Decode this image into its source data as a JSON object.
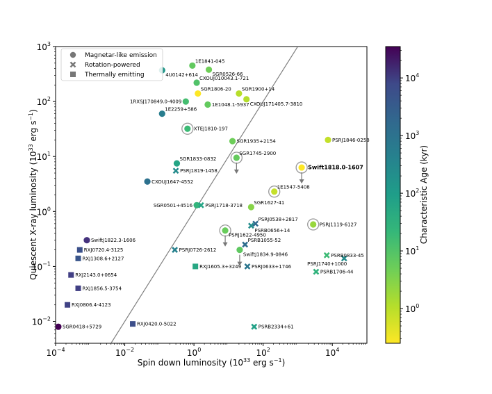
{
  "chart_data": {
    "type": "scatter",
    "xlabel": "Spin down luminosity (10",
    "xlabel_sup": "33",
    "xlabel_end": " erg s",
    "xlabel_sup2": "−1",
    "xlabel_close": ")",
    "ylabel": "Quiescent X-ray luminosity (10",
    "ylabel_sup": "33",
    "ylabel_end": " erg s",
    "ylabel_sup2": "−1",
    "ylabel_close": ")",
    "xscale": "log",
    "yscale": "log",
    "xlim": [
      0.0001,
      100000
    ],
    "ylim": [
      0.004,
      1000
    ],
    "x_ticks": [
      {
        "v": 0.0001,
        "base": "10",
        "exp": "−4"
      },
      {
        "v": 0.01,
        "base": "10",
        "exp": "−2"
      },
      {
        "v": 1,
        "base": "10",
        "exp": "0"
      },
      {
        "v": 100,
        "base": "10",
        "exp": "2"
      },
      {
        "v": 10000,
        "base": "10",
        "exp": "4"
      }
    ],
    "y_ticks": [
      {
        "v": 0.01,
        "base": "10",
        "exp": "−2"
      },
      {
        "v": 0.1,
        "base": "10",
        "exp": "−1"
      },
      {
        "v": 1,
        "base": "10",
        "exp": "0"
      },
      {
        "v": 10,
        "base": "10",
        "exp": "1"
      },
      {
        "v": 100,
        "base": "10",
        "exp": "2"
      },
      {
        "v": 1000,
        "base": "10",
        "exp": "3"
      }
    ],
    "legend": {
      "placement": "upper-left",
      "entries": [
        {
          "marker": "circle",
          "label": "Magnetar-like emission"
        },
        {
          "marker": "x",
          "label": "Rotation-powered"
        },
        {
          "marker": "square",
          "label": "Thermally emitting"
        }
      ]
    },
    "colorbar": {
      "label": "Characteristic Age (kyr)",
      "scale": "log",
      "range": [
        0.25,
        35000
      ],
      "colormap": "viridis_r",
      "ticks": [
        {
          "v": 1,
          "base": "10",
          "exp": "0"
        },
        {
          "v": 10,
          "base": "10",
          "exp": "1"
        },
        {
          "v": 100,
          "base": "10",
          "exp": "2"
        },
        {
          "v": 1000,
          "base": "10",
          "exp": "3"
        },
        {
          "v": 10000,
          "base": "10",
          "exp": "4"
        }
      ]
    },
    "reference_line": {
      "description": "Lx = Edot",
      "color": "#808080"
    },
    "points": [
      {
        "name": "1E1841-045",
        "x": 0.9,
        "y": 450,
        "marker": "circle",
        "age": 4.6,
        "label_pos": "ne"
      },
      {
        "name": "SGR0526-66",
        "x": 2.7,
        "y": 380,
        "marker": "circle",
        "age": 3.4,
        "label_pos": "se"
      },
      {
        "name": "4U0142+614",
        "x": 0.12,
        "y": 370,
        "marker": "circle",
        "age": 68,
        "label_pos": "se"
      },
      {
        "name": "CXOUJ010043.1-721",
        "x": 1.2,
        "y": 220,
        "marker": "circle",
        "age": 6.8,
        "label_pos": "ne"
      },
      {
        "name": "SGR1806-20",
        "x": 1.3,
        "y": 140,
        "marker": "circle",
        "age": 0.24,
        "label_pos": "ne"
      },
      {
        "name": "SGR1900+14",
        "x": 20,
        "y": 140,
        "marker": "circle",
        "age": 0.9,
        "label_pos": "ne"
      },
      {
        "name": "1RXSJ170849.0-4009",
        "x": 0.58,
        "y": 100,
        "marker": "circle",
        "age": 9,
        "label_pos": "w"
      },
      {
        "name": "1E1048.1-5937",
        "x": 2.5,
        "y": 88,
        "marker": "circle",
        "age": 4.5,
        "label_pos": "e"
      },
      {
        "name": "CXOUJ171405.7-3810",
        "x": 33,
        "y": 110,
        "marker": "circle",
        "age": 0.95,
        "label_pos": "se"
      },
      {
        "name": "1E2259+586",
        "x": 0.12,
        "y": 60,
        "marker": "circle",
        "age": 230,
        "label_pos": "ne"
      },
      {
        "name": "XTEJ1810-197",
        "x": 0.65,
        "y": 32,
        "marker": "circle",
        "age": 11,
        "label_pos": "e",
        "ring": true
      },
      {
        "name": "PSRJ1846-0258",
        "x": 7500,
        "y": 20,
        "marker": "circle",
        "age": 0.72,
        "label_pos": "e"
      },
      {
        "name": "SGR1935+2154",
        "x": 13,
        "y": 19,
        "marker": "circle",
        "age": 3.6,
        "label_pos": "e"
      },
      {
        "name": "SGR1745-2900",
        "x": 17,
        "y": 9.5,
        "marker": "circle",
        "age": 4.3,
        "label_pos": "ne",
        "ring": true,
        "arrow": true
      },
      {
        "name": "SGR1833-0832",
        "x": 0.32,
        "y": 7.5,
        "marker": "circle",
        "age": 34,
        "label_pos": "ne"
      },
      {
        "name": "Swift1818.0-1607",
        "x": 1300,
        "y": 6.3,
        "marker": "circle",
        "age": 0.25,
        "label_pos": "e",
        "ring": true,
        "arrow": true,
        "bold": true
      },
      {
        "name": "PSRJ1819-1458",
        "x": 0.3,
        "y": 5.5,
        "marker": "x",
        "age": 117,
        "label_pos": "e"
      },
      {
        "name": "CXOUJ1647-4552",
        "x": 0.045,
        "y": 3.5,
        "marker": "circle",
        "age": 420,
        "label_pos": "e"
      },
      {
        "name": "1E1547-5408",
        "x": 210,
        "y": 2.3,
        "marker": "circle",
        "age": 0.7,
        "label_pos": "ne",
        "ring": true
      },
      {
        "name": "SGR0501+4516",
        "x": 1.2,
        "y": 1.3,
        "marker": "circle",
        "age": 15,
        "label_pos": "w"
      },
      {
        "name": "PSRJ1718-3718",
        "x": 1.6,
        "y": 1.3,
        "marker": "x",
        "age": 34,
        "label_pos": "e"
      },
      {
        "name": "SGR1627-41",
        "x": 45,
        "y": 1.2,
        "marker": "circle",
        "age": 2.2,
        "label_pos": "ne"
      },
      {
        "name": "PSRJ0538+2817",
        "x": 60,
        "y": 0.6,
        "marker": "x",
        "age": 600,
        "label_pos": "ne"
      },
      {
        "name": "PSRB0656+14",
        "x": 45,
        "y": 0.55,
        "marker": "x",
        "age": 110,
        "label_pos": "se"
      },
      {
        "name": "PSRJ1119-6127",
        "x": 2800,
        "y": 0.58,
        "marker": "circle",
        "age": 1.6,
        "label_pos": "e",
        "ring": true
      },
      {
        "name": "PSRJ1622-4950",
        "x": 8,
        "y": 0.45,
        "marker": "circle",
        "age": 4,
        "label_pos": "se",
        "ring": true,
        "arrow": true
      },
      {
        "name": "SwiftJ1822.3-1606",
        "x": 0.0008,
        "y": 0.3,
        "marker": "circle",
        "age": 6300,
        "label_pos": "e"
      },
      {
        "name": "PSRB1055-52",
        "x": 30,
        "y": 0.25,
        "marker": "x",
        "age": 535,
        "label_pos": "ne"
      },
      {
        "name": "RXJ0720.4-3125",
        "x": 0.0005,
        "y": 0.2,
        "marker": "square",
        "age": 1900,
        "label_pos": "e"
      },
      {
        "name": "PSRJ0726-2612",
        "x": 0.28,
        "y": 0.2,
        "marker": "x",
        "age": 190,
        "label_pos": "e"
      },
      {
        "name": "SwiftJ1834.9-0846",
        "x": 21,
        "y": 0.2,
        "marker": "circle",
        "age": 4.9,
        "label_pos": "se",
        "arrow": true
      },
      {
        "name": "RXJ1308.6+2127",
        "x": 0.00045,
        "y": 0.14,
        "marker": "square",
        "age": 1500,
        "label_pos": "e"
      },
      {
        "name": "PSRB0833-45",
        "x": 6900,
        "y": 0.16,
        "marker": "x",
        "age": 11,
        "label_pos": "e"
      },
      {
        "name": "PSRJ1740+1000",
        "x": 22000,
        "y": 0.14,
        "marker": "x",
        "age": 114,
        "label_pos": "sw"
      },
      {
        "name": "RXJ1605.3+3249",
        "x": 1.1,
        "y": 0.1,
        "marker": "square",
        "age": 30,
        "label_pos": "e"
      },
      {
        "name": "PSRJ0633+1746",
        "x": 35,
        "y": 0.1,
        "marker": "x",
        "age": 340,
        "label_pos": "e"
      },
      {
        "name": "PSRB1706-44",
        "x": 3400,
        "y": 0.08,
        "marker": "x",
        "age": 17,
        "label_pos": "e"
      },
      {
        "name": "RXJ2143.0+0654",
        "x": 0.00028,
        "y": 0.07,
        "marker": "square",
        "age": 3700,
        "label_pos": "e"
      },
      {
        "name": "RXJ1856.5-3754",
        "x": 0.00045,
        "y": 0.04,
        "marker": "square",
        "age": 3800,
        "label_pos": "e"
      },
      {
        "name": "RXJ0806.4-4123",
        "x": 0.00022,
        "y": 0.02,
        "marker": "square",
        "age": 3300,
        "label_pos": "e"
      },
      {
        "name": "RXJ0420.0-5022",
        "x": 0.017,
        "y": 0.009,
        "marker": "square",
        "age": 2000,
        "label_pos": "e"
      },
      {
        "name": "SGR0418+5729",
        "x": 0.00012,
        "y": 0.008,
        "marker": "circle",
        "age": 36000,
        "label_pos": "e"
      },
      {
        "name": "PSRB2334+61",
        "x": 55,
        "y": 0.008,
        "marker": "x",
        "age": 41,
        "label_pos": "e"
      }
    ]
  }
}
